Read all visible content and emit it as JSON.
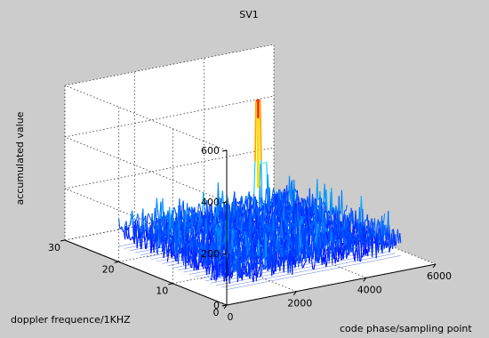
{
  "chart_data": {
    "type": "surface",
    "title": "SV1",
    "xlabel": "code phase/sampling point",
    "ylabel": "doppler frequence/1KHZ",
    "zlabel": "accumulated value",
    "xlim": [
      0,
      6000
    ],
    "ylim": [
      0,
      30
    ],
    "zlim": [
      0,
      600
    ],
    "x_ticks": [
      "0",
      "2000",
      "4000",
      "6000"
    ],
    "y_ticks": [
      "0",
      "10",
      "20",
      "30"
    ],
    "z_ticks": [
      "0",
      "200",
      "400",
      "600"
    ],
    "grid": true,
    "noise_floor": {
      "x_range": [
        0,
        5000
      ],
      "y_range": [
        0,
        20
      ],
      "typical_value": 150,
      "max_value": 250
    },
    "peak": {
      "x": 4000,
      "y": 20,
      "value": 520
    },
    "colormap": [
      "#000080",
      "#0000ff",
      "#0080ff",
      "#00ffff",
      "#ffff00",
      "#ff8000",
      "#ff0000",
      "#800000"
    ]
  }
}
